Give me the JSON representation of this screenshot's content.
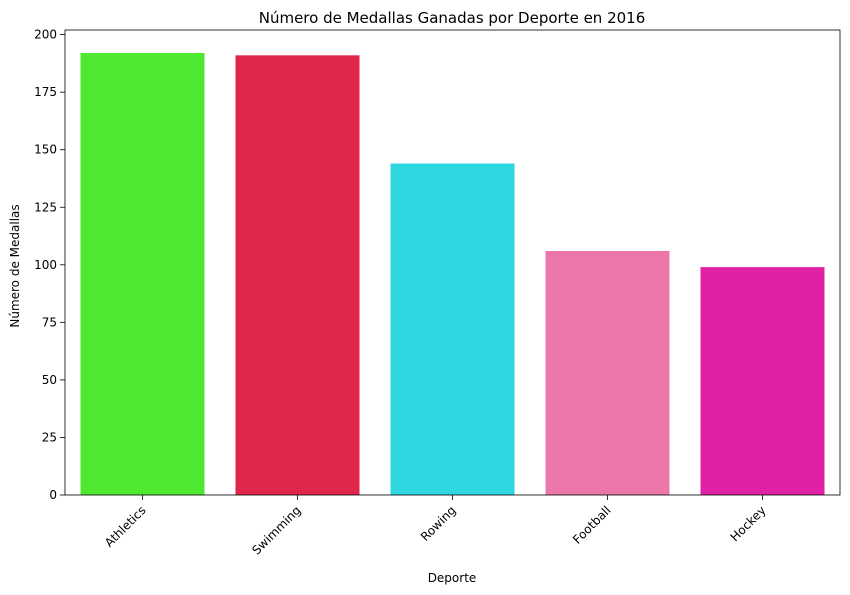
{
  "chart_data": {
    "type": "bar",
    "title": "Número de Medallas Ganadas por Deporte en 2016",
    "xlabel": "Deporte",
    "ylabel": "Número de Medallas",
    "categories": [
      "Athletics",
      "Swimming",
      "Rowing",
      "Football",
      "Hockey"
    ],
    "values": [
      192,
      191,
      144,
      106,
      99
    ],
    "colors": [
      "#4de82f",
      "#e0264b",
      "#2dd7df",
      "#ec76a9",
      "#e021a5"
    ],
    "ylim": [
      0,
      202
    ],
    "yticks": [
      0,
      25,
      50,
      75,
      100,
      125,
      150,
      175,
      200
    ],
    "grid": false,
    "legend": "none",
    "xtick_rotation": 45
  }
}
